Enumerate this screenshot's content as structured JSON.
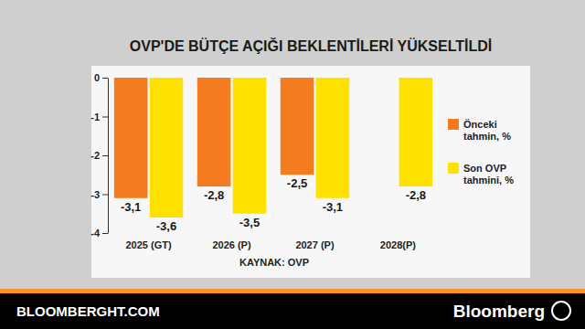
{
  "chart_data": {
    "type": "bar",
    "title": "OVP'DE BÜTÇE AÇIĞI BEKLENTİLERİ YÜKSELTİLDİ",
    "categories": [
      "2025 (GT)",
      "2026 (P)",
      "2027 (P)",
      "2028(P)"
    ],
    "series": [
      {
        "name": "Önceki tahmin, %",
        "color": "#f47b20",
        "values": [
          -3.1,
          -2.8,
          -2.5,
          null
        ],
        "value_labels": [
          "-3,1",
          "-2,8",
          "-2,5",
          null
        ]
      },
      {
        "name": "Son OVP tahmini, %",
        "color": "#ffe100",
        "values": [
          -3.6,
          -3.5,
          -3.1,
          -2.8
        ],
        "value_labels": [
          "-3,6",
          "-3,5",
          "-3,1",
          "-2,8"
        ]
      }
    ],
    "ylim": [
      -4,
      0
    ],
    "yticks": [
      -4,
      -3,
      -2,
      -1,
      0
    ],
    "grid": false,
    "legend": "right",
    "data_labels": true,
    "source": "KAYNAK: OVP"
  },
  "footer": {
    "site": "BLOOMBERGHT.COM",
    "brand": "Bloomberg"
  }
}
